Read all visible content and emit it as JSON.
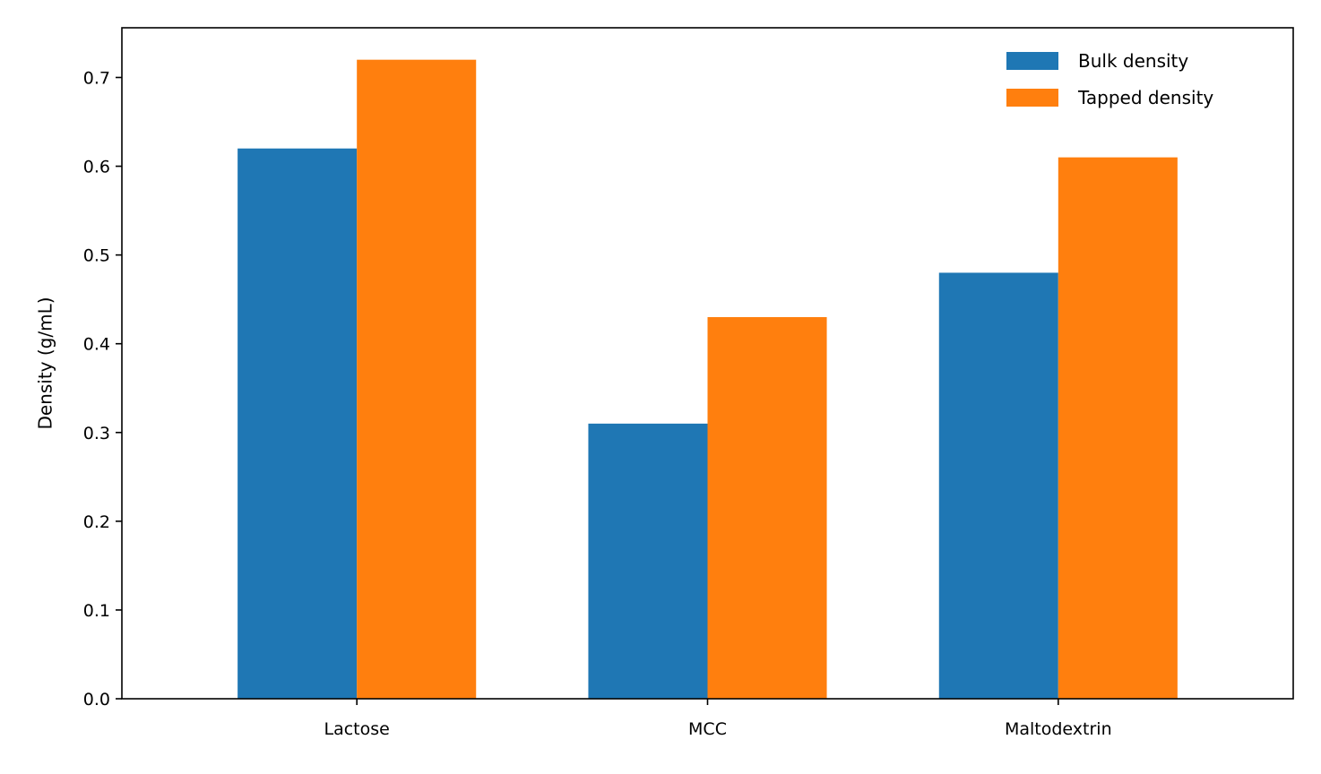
{
  "chart_data": {
    "type": "bar",
    "title": "",
    "xlabel": "",
    "ylabel": "Density (g/mL)",
    "categories": [
      "Lactose",
      "MCC",
      "Maltodextrin"
    ],
    "series": [
      {
        "name": "Bulk density",
        "values": [
          0.62,
          0.31,
          0.48
        ],
        "color": "#1f77b4"
      },
      {
        "name": "Tapped density",
        "values": [
          0.72,
          0.43,
          0.61
        ],
        "color": "#ff7f0e"
      }
    ],
    "ylim": [
      0,
      0.756
    ],
    "yticks": [
      0.0,
      0.1,
      0.2,
      0.3,
      0.4,
      0.5,
      0.6,
      0.7
    ],
    "ytick_labels": [
      "0.0",
      "0.1",
      "0.2",
      "0.3",
      "0.4",
      "0.5",
      "0.6",
      "0.7"
    ],
    "grid": false,
    "legend_position": "upper right"
  }
}
